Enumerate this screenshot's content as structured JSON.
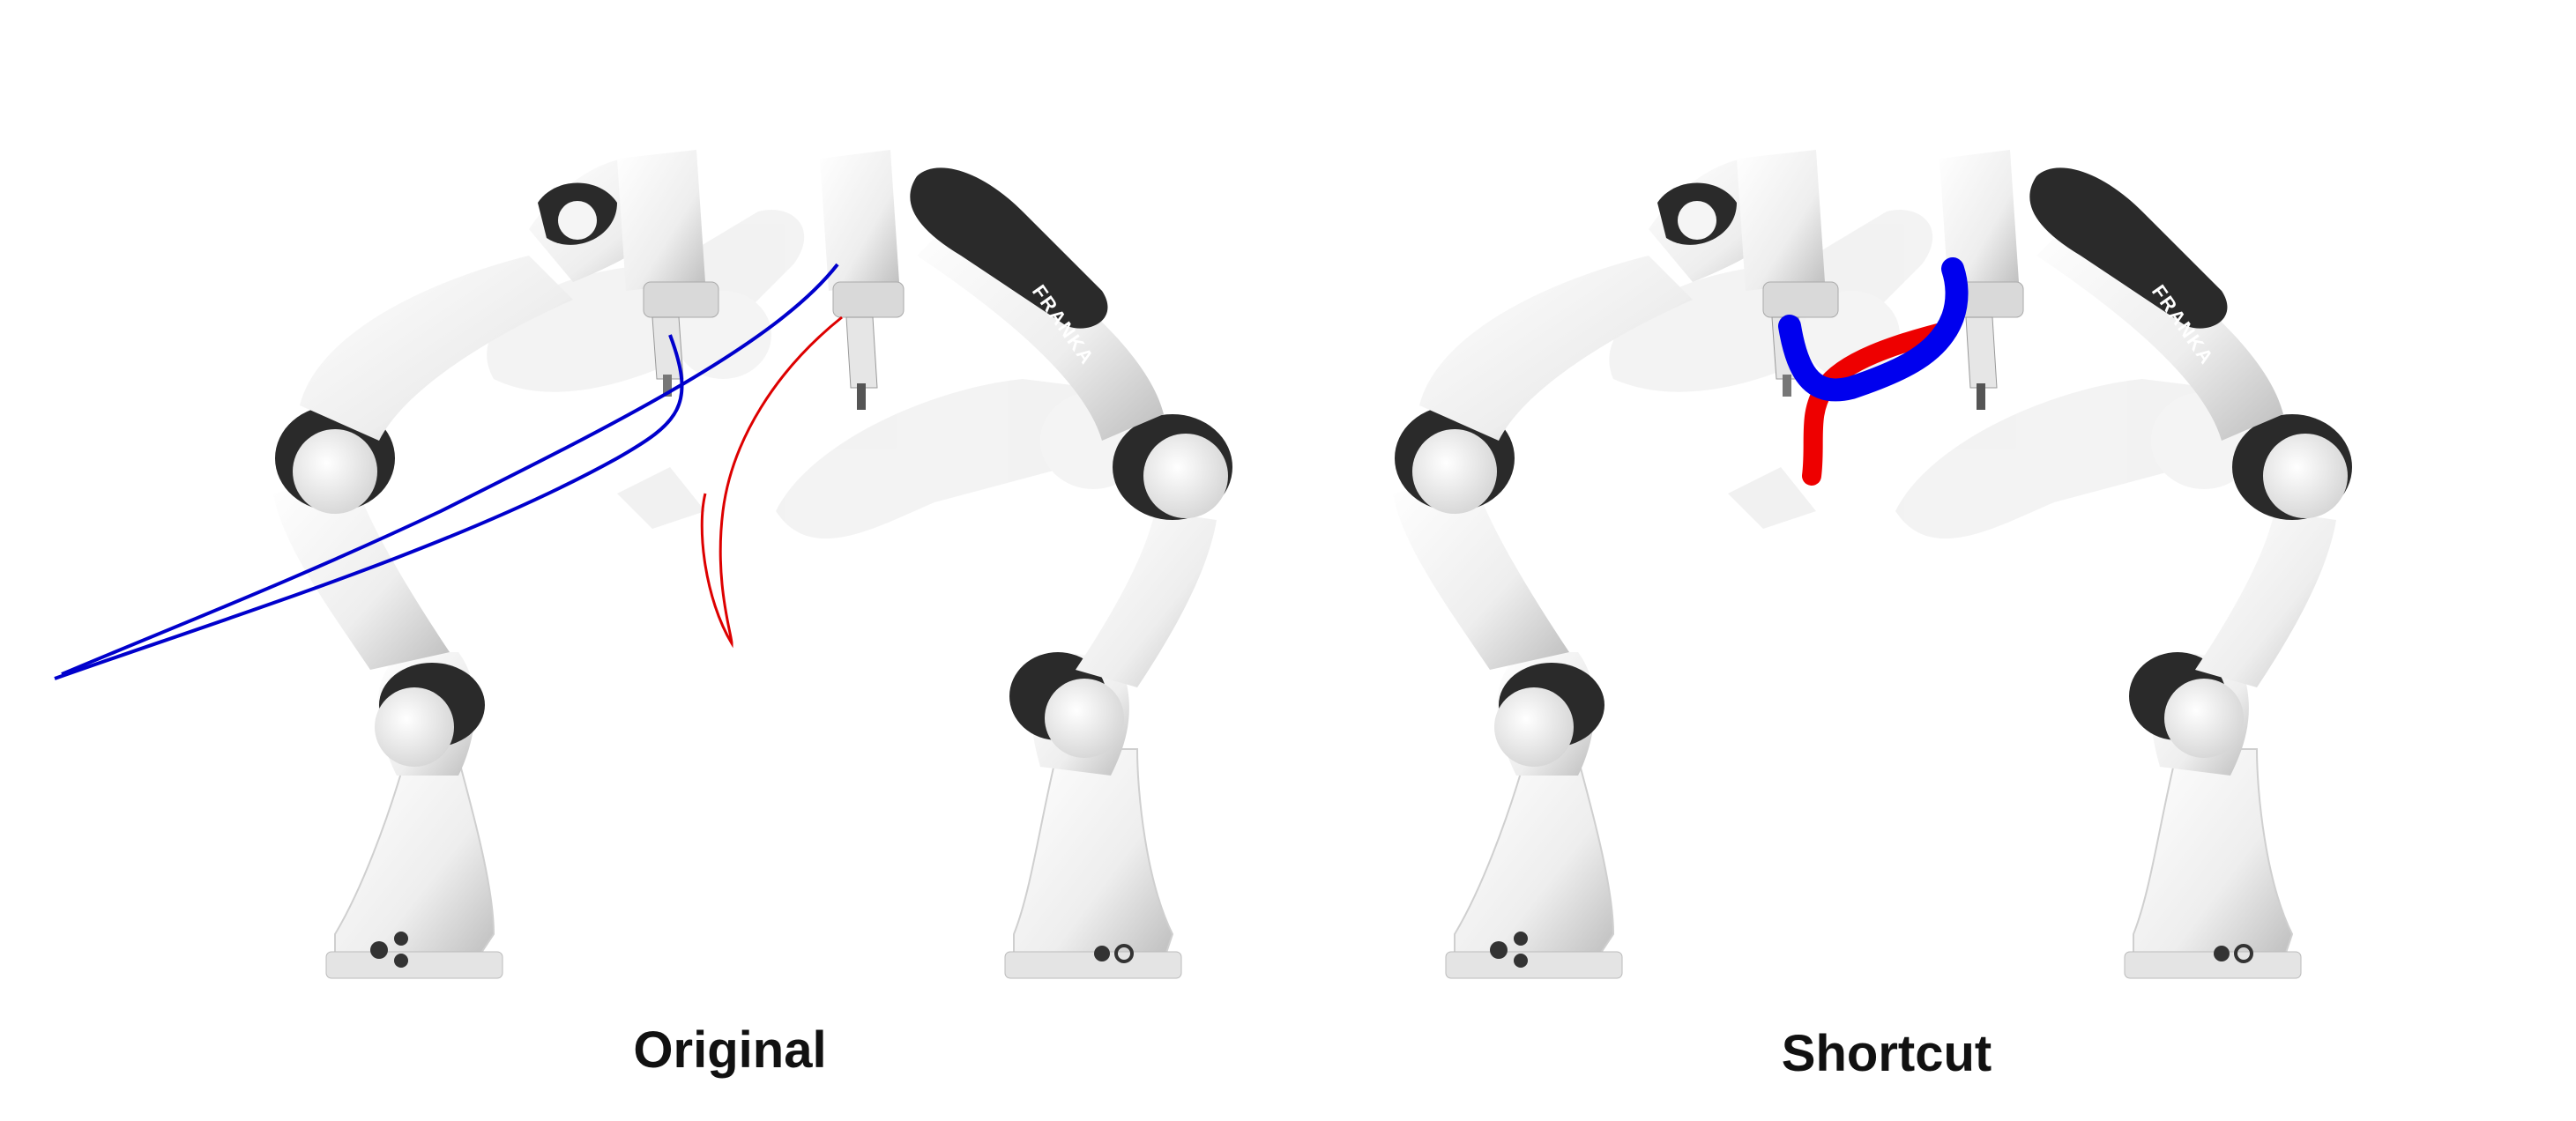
{
  "panels": [
    {
      "caption": "Original",
      "trajectory_style": "thin",
      "trajectory_colors": {
        "arm_a": "#0000cc",
        "arm_b": "#dd0000"
      }
    },
    {
      "caption": "Shortcut",
      "trajectory_style": "thick",
      "trajectory_colors": {
        "arm_a": "#0000ee",
        "arm_b": "#ee0000"
      }
    }
  ],
  "robot": {
    "brand_label": "FRANKA",
    "colors": {
      "body": "#f2f2f2",
      "shade": "#cfcfcf",
      "joint": "#2a2a2a",
      "ghost": "#e6e6e6"
    }
  }
}
